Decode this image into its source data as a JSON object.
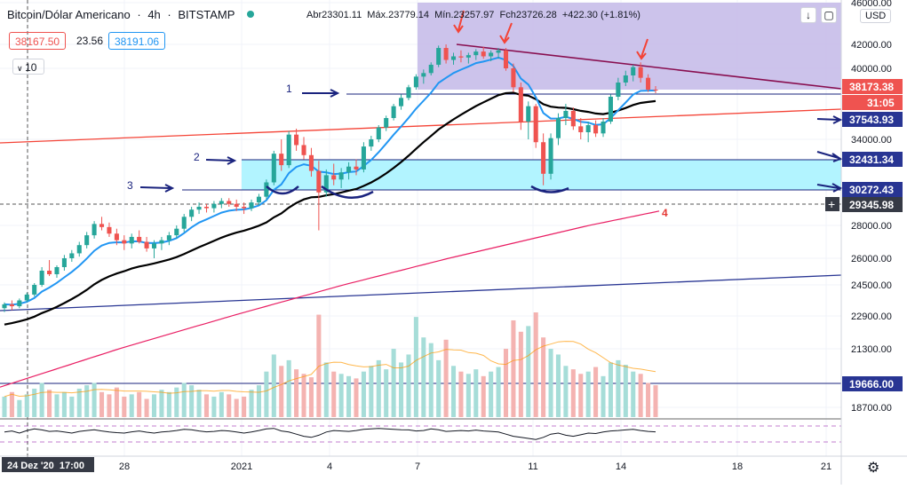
{
  "header": {
    "title": "Bitcoin/Dólar Americano",
    "interval": "4h",
    "exchange": "BITSTAMP",
    "ohlc_line": "Abr23301.11  Máx.23779.14  Mín.23257.97  Fch23726.28  +422.30 (+1.81%)",
    "bid": "38167.50",
    "spread": "23.56",
    "ask": "38191.06",
    "indicator_value": "10",
    "currency": "USD",
    "collapse_icon": "arrow-down-icon",
    "fullscreen_icon": "fullscreen-icon"
  },
  "colors": {
    "up": "#26a69a",
    "down": "#ef5350",
    "ema_fast": "#2196f3",
    "ema_slow": "#000000",
    "ma_long": "#e91e63",
    "support_zone": "#b2f4ff",
    "resistance_zone": "#c6bde9",
    "trend_red": "#f44336",
    "trend_blue": "#283593",
    "trend_purple": "#880e4f",
    "annotation": "#1a237e"
  },
  "chart_data": {
    "type": "candlestick",
    "symbol": "BTCUSD",
    "y_axis_ticks": [
      "46000.00",
      "42000.00",
      "40000.00",
      "34000.00",
      "28000.00",
      "26000.00",
      "24500.00",
      "22900.00",
      "21300.00",
      "18700.00"
    ],
    "x_axis_ticks": [
      "24 Dez '20  17:00",
      "28",
      "2021",
      "4",
      "7",
      "11",
      "14",
      "18",
      "21"
    ],
    "price_labels": [
      {
        "text": "38173.38",
        "kind": "last-price"
      },
      {
        "text": "31:05",
        "kind": "countdown"
      },
      {
        "text": "37543.93",
        "kind": "level"
      },
      {
        "text": "32431.34",
        "kind": "level"
      },
      {
        "text": "30272.43",
        "kind": "level"
      },
      {
        "text": "29345.98",
        "kind": "crosshair"
      },
      {
        "text": "19666.00",
        "kind": "level"
      }
    ],
    "annotations": [
      "1",
      "2",
      "3",
      "4"
    ],
    "candles": [
      [
        23300,
        23600,
        23100,
        23500
      ],
      [
        23500,
        23700,
        23200,
        23400
      ],
      [
        23400,
        23800,
        23300,
        23700
      ],
      [
        23700,
        24100,
        23600,
        24000
      ],
      [
        24000,
        24600,
        23900,
        24500
      ],
      [
        24500,
        25500,
        24400,
        25300
      ],
      [
        25300,
        25900,
        25000,
        25100
      ],
      [
        25100,
        25600,
        24900,
        25500
      ],
      [
        25500,
        26200,
        25300,
        26000
      ],
      [
        26000,
        26500,
        25800,
        26300
      ],
      [
        26300,
        27000,
        26100,
        26800
      ],
      [
        26800,
        27600,
        26600,
        27400
      ],
      [
        27400,
        28300,
        27200,
        28100
      ],
      [
        28100,
        28600,
        27700,
        27900
      ],
      [
        27900,
        28200,
        27300,
        27500
      ],
      [
        27500,
        27800,
        26800,
        27100
      ],
      [
        27100,
        27400,
        26500,
        26900
      ],
      [
        26900,
        27500,
        26600,
        27300
      ],
      [
        27300,
        27700,
        26900,
        27000
      ],
      [
        27000,
        27300,
        26400,
        26600
      ],
      [
        26600,
        27100,
        26000,
        26900
      ],
      [
        26900,
        27300,
        26500,
        27100
      ],
      [
        27100,
        27600,
        26800,
        27400
      ],
      [
        27400,
        28000,
        27200,
        27800
      ],
      [
        27800,
        28800,
        27600,
        28600
      ],
      [
        28600,
        29300,
        28300,
        29100
      ],
      [
        29100,
        29600,
        28800,
        29300
      ],
      [
        29300,
        29500,
        28900,
        29200
      ],
      [
        29200,
        29700,
        28900,
        29500
      ],
      [
        29500,
        29900,
        29200,
        29700
      ],
      [
        29700,
        29900,
        29300,
        29500
      ],
      [
        29500,
        29800,
        29000,
        29300
      ],
      [
        29300,
        29600,
        28800,
        29200
      ],
      [
        29200,
        29800,
        29000,
        29600
      ],
      [
        29600,
        30200,
        29400,
        30000
      ],
      [
        30000,
        31200,
        29800,
        31000
      ],
      [
        31000,
        33200,
        30800,
        33000
      ],
      [
        33000,
        34000,
        31800,
        32200
      ],
      [
        32200,
        34700,
        32000,
        34400
      ],
      [
        34400,
        34900,
        33200,
        33600
      ],
      [
        33600,
        34200,
        32600,
        32900
      ],
      [
        32900,
        33400,
        31400,
        31800
      ],
      [
        31800,
        32500,
        27700,
        30300
      ],
      [
        30300,
        31900,
        30000,
        31500
      ],
      [
        31500,
        32300,
        30800,
        31200
      ],
      [
        31200,
        32000,
        30600,
        31700
      ],
      [
        31700,
        32400,
        31200,
        32100
      ],
      [
        32100,
        32600,
        31500,
        31900
      ],
      [
        31900,
        33800,
        31700,
        33500
      ],
      [
        33500,
        34300,
        33200,
        34000
      ],
      [
        34000,
        35200,
        33800,
        35000
      ],
      [
        35000,
        36000,
        34700,
        35800
      ],
      [
        35800,
        37000,
        35600,
        36800
      ],
      [
        36800,
        37800,
        36500,
        37500
      ],
      [
        37500,
        38600,
        37300,
        38400
      ],
      [
        38400,
        39500,
        38200,
        39300
      ],
      [
        39300,
        39900,
        38700,
        39600
      ],
      [
        39600,
        40500,
        39400,
        40300
      ],
      [
        40300,
        41900,
        40100,
        41700
      ],
      [
        41700,
        42000,
        40400,
        40700
      ],
      [
        40700,
        41300,
        40300,
        41000
      ],
      [
        41000,
        41500,
        40500,
        40900
      ],
      [
        40900,
        41300,
        40400,
        41100
      ],
      [
        41100,
        41600,
        40700,
        41400
      ],
      [
        41400,
        41800,
        40800,
        41000
      ],
      [
        41000,
        41500,
        40600,
        41300
      ],
      [
        41300,
        41700,
        40800,
        41500
      ],
      [
        41500,
        41700,
        39800,
        40000
      ],
      [
        40000,
        40400,
        38000,
        38400
      ],
      [
        38400,
        38800,
        34800,
        35500
      ],
      [
        35500,
        37200,
        34000,
        36800
      ],
      [
        36800,
        37000,
        33400,
        33800
      ],
      [
        33800,
        34500,
        30800,
        31600
      ],
      [
        31600,
        34500,
        31200,
        34100
      ],
      [
        34100,
        36200,
        33600,
        35800
      ],
      [
        35800,
        37000,
        35200,
        36400
      ],
      [
        36400,
        36700,
        34800,
        35100
      ],
      [
        35100,
        35800,
        34000,
        34600
      ],
      [
        34600,
        35500,
        33800,
        35200
      ],
      [
        35200,
        35600,
        34200,
        34500
      ],
      [
        34500,
        35800,
        34200,
        35500
      ],
      [
        35500,
        37800,
        35300,
        37600
      ],
      [
        37600,
        39200,
        37300,
        38800
      ],
      [
        38800,
        39800,
        38500,
        39400
      ],
      [
        39400,
        40300,
        38900,
        40100
      ],
      [
        40100,
        40500,
        38800,
        39200
      ],
      [
        39200,
        39500,
        38000,
        38200
      ],
      [
        38200,
        38500,
        37900,
        38173
      ]
    ],
    "volume": [
      18,
      22,
      15,
      20,
      25,
      30,
      24,
      20,
      22,
      18,
      25,
      28,
      30,
      22,
      20,
      26,
      18,
      20,
      22,
      16,
      20,
      24,
      22,
      26,
      30,
      28,
      24,
      20,
      18,
      22,
      20,
      16,
      18,
      24,
      28,
      40,
      55,
      45,
      50,
      42,
      38,
      35,
      90,
      48,
      40,
      38,
      36,
      34,
      40,
      45,
      50,
      42,
      60,
      48,
      55,
      88,
      70,
      65,
      50,
      68,
      45,
      40,
      38,
      42,
      36,
      40,
      44,
      60,
      85,
      75,
      80,
      92,
      70,
      60,
      55,
      45,
      42,
      38,
      40,
      44,
      36,
      48,
      50,
      46,
      40,
      38,
      30,
      28
    ],
    "oscillator": [
      0.55,
      0.6,
      0.5,
      0.62,
      0.7,
      0.65,
      0.58,
      0.6,
      0.55,
      0.5,
      0.58,
      0.62,
      0.66,
      0.6,
      0.55,
      0.52,
      0.5,
      0.56,
      0.6,
      0.54,
      0.5,
      0.55,
      0.58,
      0.62,
      0.68,
      0.66,
      0.6,
      0.56,
      0.58,
      0.62,
      0.6,
      0.55,
      0.5,
      0.55,
      0.62,
      0.7,
      0.72,
      0.6,
      0.55,
      0.45,
      0.35,
      0.3,
      0.4,
      0.55,
      0.62,
      0.6,
      0.58,
      0.62,
      0.68,
      0.7,
      0.72,
      0.7,
      0.68,
      0.66,
      0.65,
      0.6,
      0.62,
      0.7,
      0.66,
      0.58,
      0.6,
      0.62,
      0.6,
      0.64,
      0.6,
      0.58,
      0.55,
      0.45,
      0.35,
      0.3,
      0.25,
      0.2,
      0.3,
      0.45,
      0.5,
      0.4,
      0.35,
      0.42,
      0.5,
      0.48,
      0.55,
      0.6,
      0.62,
      0.65,
      0.68,
      0.62,
      0.58,
      0.56
    ]
  }
}
